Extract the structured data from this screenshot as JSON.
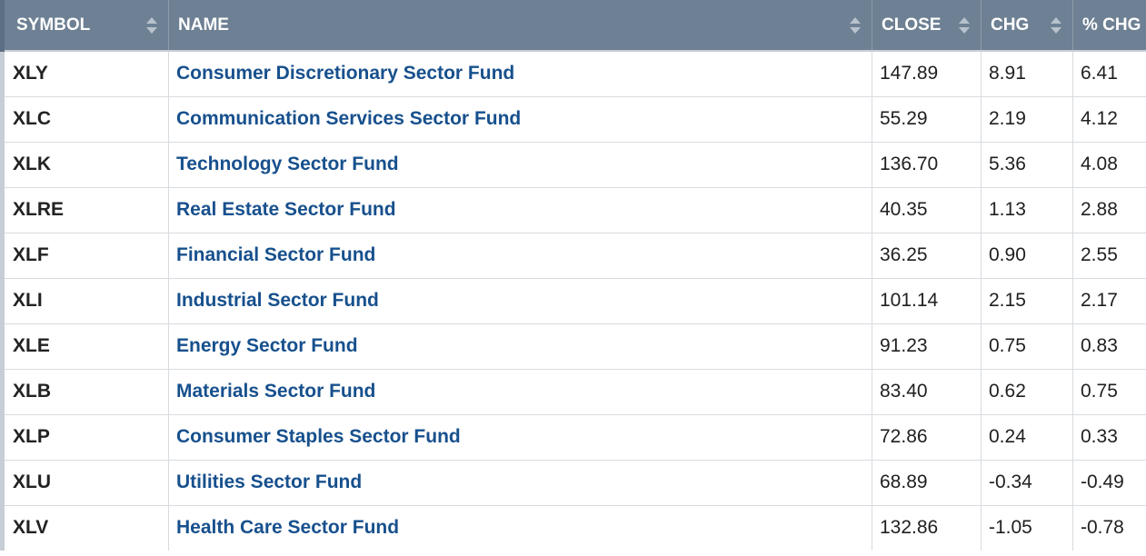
{
  "table": {
    "headers": {
      "symbol": "SYMBOL",
      "name": "NAME",
      "close": "CLOSE",
      "chg": "CHG",
      "pct_chg": "% CHG"
    },
    "rows": [
      {
        "symbol": "XLY",
        "name": "Consumer Discretionary Sector Fund",
        "close": "147.89",
        "chg": "8.91",
        "pct_chg": "6.41"
      },
      {
        "symbol": "XLC",
        "name": "Communication Services Sector Fund",
        "close": "55.29",
        "chg": "2.19",
        "pct_chg": "4.12"
      },
      {
        "symbol": "XLK",
        "name": "Technology Sector Fund",
        "close": "136.70",
        "chg": "5.36",
        "pct_chg": "4.08"
      },
      {
        "symbol": "XLRE",
        "name": "Real Estate Sector Fund",
        "close": "40.35",
        "chg": "1.13",
        "pct_chg": "2.88"
      },
      {
        "symbol": "XLF",
        "name": "Financial Sector Fund",
        "close": "36.25",
        "chg": "0.90",
        "pct_chg": "2.55"
      },
      {
        "symbol": "XLI",
        "name": "Industrial Sector Fund",
        "close": "101.14",
        "chg": "2.15",
        "pct_chg": "2.17"
      },
      {
        "symbol": "XLE",
        "name": "Energy Sector Fund",
        "close": "91.23",
        "chg": "0.75",
        "pct_chg": "0.83"
      },
      {
        "symbol": "XLB",
        "name": "Materials Sector Fund",
        "close": "83.40",
        "chg": "0.62",
        "pct_chg": "0.75"
      },
      {
        "symbol": "XLP",
        "name": "Consumer Staples Sector Fund",
        "close": "72.86",
        "chg": "0.24",
        "pct_chg": "0.33"
      },
      {
        "symbol": "XLU",
        "name": "Utilities Sector Fund",
        "close": "68.89",
        "chg": "-0.34",
        "pct_chg": "-0.49"
      },
      {
        "symbol": "XLV",
        "name": "Health Care Sector Fund",
        "close": "132.86",
        "chg": "-1.05",
        "pct_chg": "-0.78"
      }
    ]
  },
  "colors": {
    "header_bg": "#6e8093",
    "link": "#17508d"
  },
  "icons": {
    "sort": "sort-arrows-icon"
  }
}
